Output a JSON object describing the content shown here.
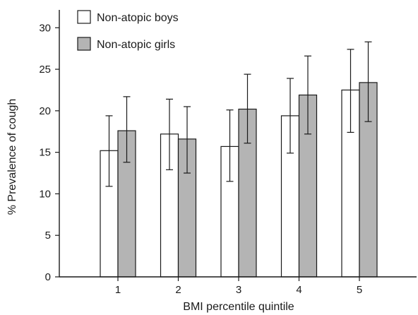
{
  "chart_data": {
    "type": "bar",
    "xlabel": "BMI percentile quintile",
    "ylabel": "% Prevalence of cough",
    "ylim": [
      0,
      32
    ],
    "yticks": [
      0,
      5,
      10,
      15,
      20,
      25,
      30
    ],
    "categories": [
      "1",
      "2",
      "3",
      "4",
      "5"
    ],
    "legend_position": "top-left",
    "grid": false,
    "series": [
      {
        "name": "Non-atopic boys",
        "color": "#ffffff",
        "values": [
          15.2,
          17.2,
          15.7,
          19.4,
          22.5
        ],
        "error_low": [
          10.9,
          12.9,
          11.5,
          14.9,
          17.4
        ],
        "error_high": [
          19.4,
          21.4,
          20.1,
          23.9,
          27.4
        ]
      },
      {
        "name": "Non-atopic girls",
        "color": "#b4b4b4",
        "values": [
          17.6,
          16.6,
          20.2,
          21.9,
          23.4
        ],
        "error_low": [
          13.8,
          12.5,
          16.1,
          17.2,
          18.7
        ],
        "error_high": [
          21.7,
          20.5,
          24.4,
          26.6,
          28.3
        ]
      }
    ]
  }
}
